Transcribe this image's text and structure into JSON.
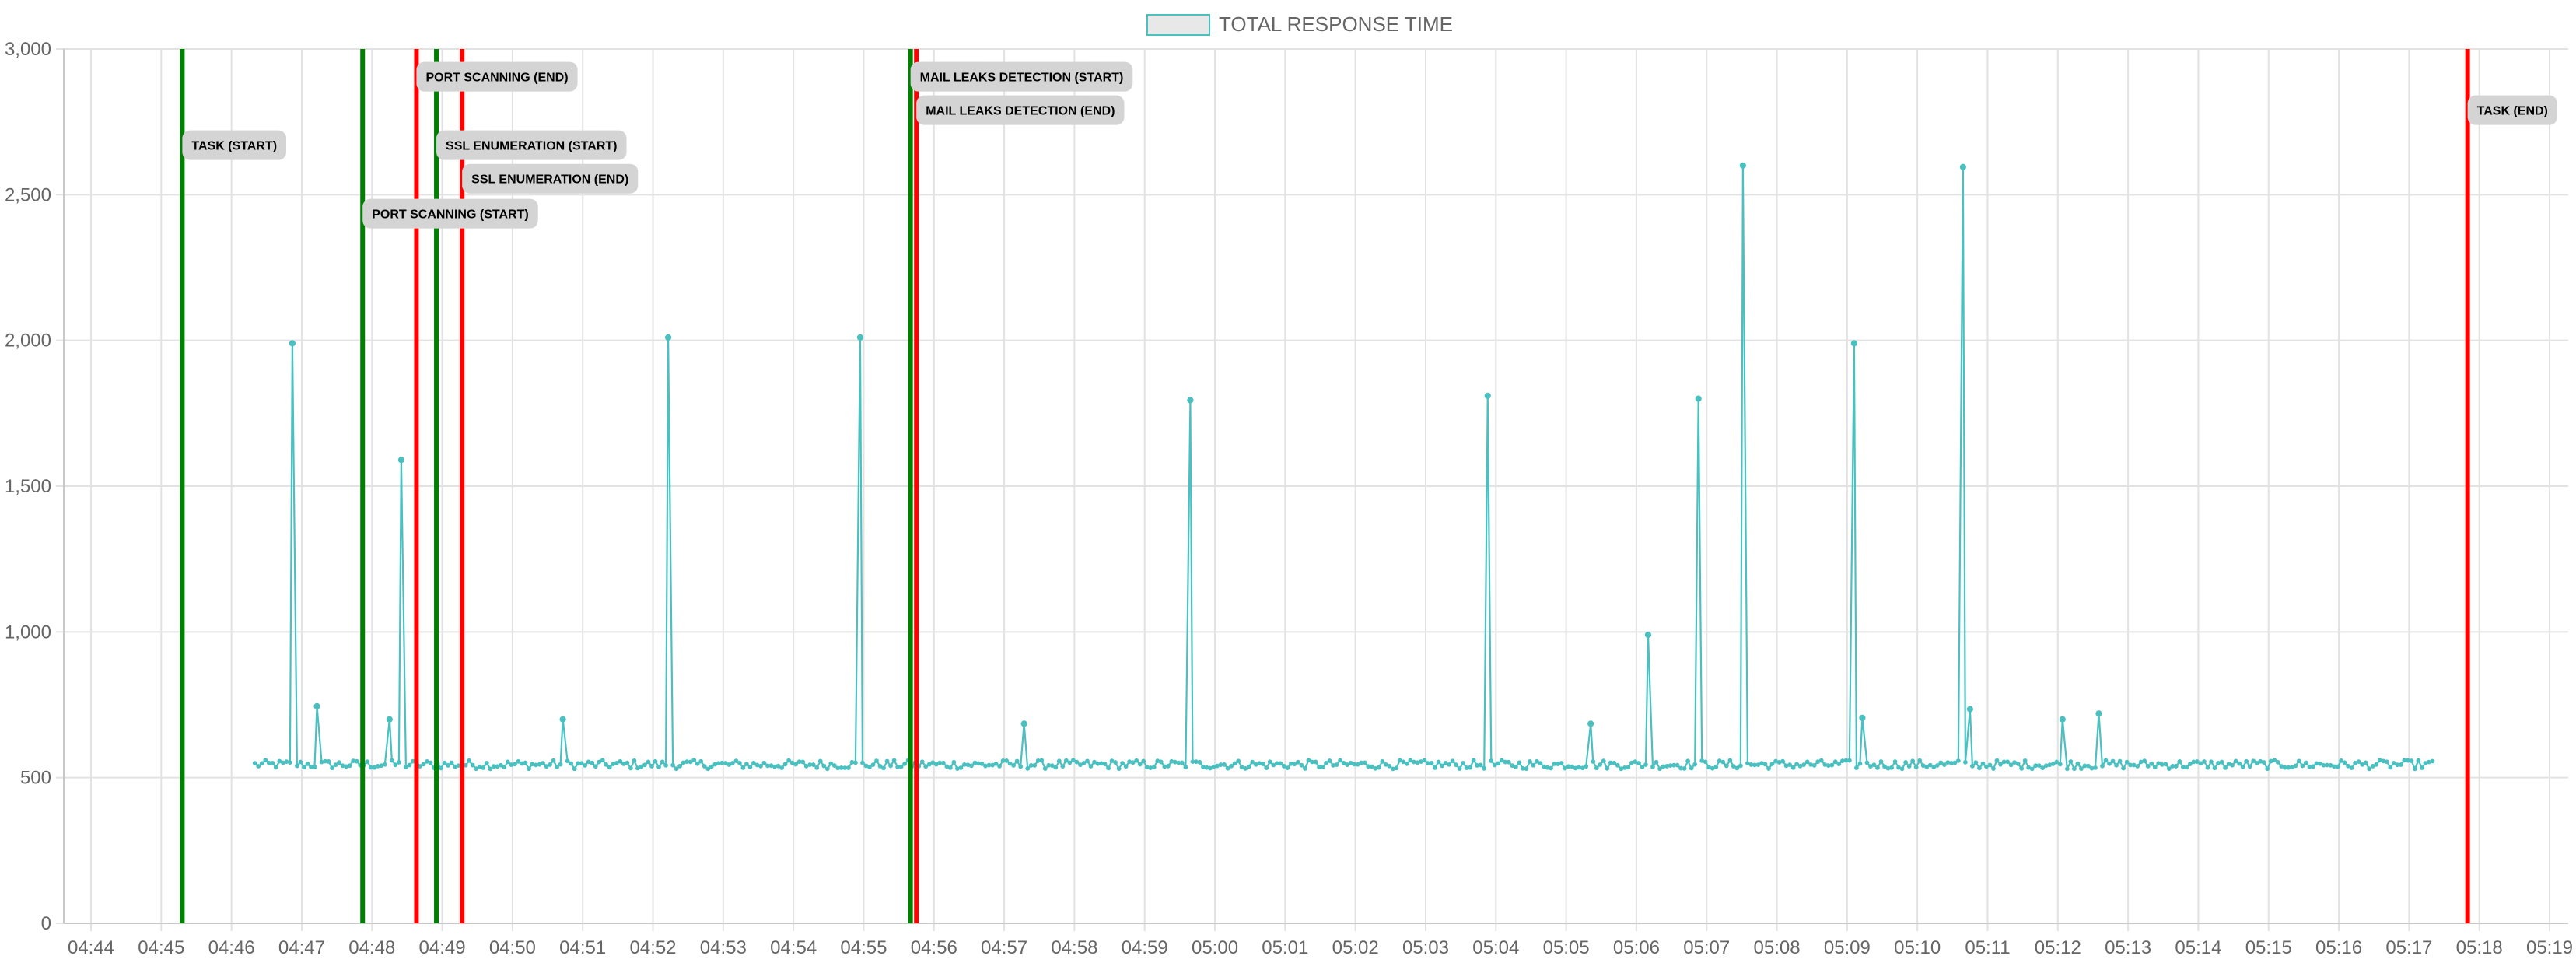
{
  "chart_data": {
    "type": "line",
    "title": "",
    "xlabel": "",
    "ylabel": "",
    "ylim": [
      0,
      3000
    ],
    "y_ticks": [
      "0",
      "500",
      "1,000",
      "1,500",
      "2,000",
      "2,500",
      "3,000"
    ],
    "y_tick_values": [
      0,
      500,
      1000,
      1500,
      2000,
      2500,
      3000
    ],
    "x_ticks": [
      "04:44",
      "04:45",
      "04:46",
      "04:47",
      "04:48",
      "04:49",
      "04:50",
      "04:51",
      "04:52",
      "04:53",
      "04:54",
      "04:55",
      "04:56",
      "04:57",
      "04:58",
      "04:59",
      "05:00",
      "05:01",
      "05:02",
      "05:03",
      "05:04",
      "05:05",
      "05:06",
      "05:07",
      "05:08",
      "05:09",
      "05:10",
      "05:11",
      "05:12",
      "05:13",
      "05:14",
      "05:15",
      "05:16",
      "05:17",
      "05:18",
      "05:19"
    ],
    "xlim": [
      "04:44",
      "05:19"
    ],
    "grid": true,
    "legend": {
      "position": "top",
      "entries": [
        "TOTAL RESPONSE TIME"
      ]
    },
    "series": [
      {
        "name": "TOTAL RESPONSE TIME",
        "color": "#4bc0c0",
        "baseline": 545,
        "x_start": "04:46:20",
        "x_end": "05:17:20",
        "spikes": [
          {
            "x": "04:46:52",
            "y": 1990
          },
          {
            "x": "04:47:13",
            "y": 745
          },
          {
            "x": "04:48:15",
            "y": 700
          },
          {
            "x": "04:48:25",
            "y": 1590
          },
          {
            "x": "04:50:43",
            "y": 700
          },
          {
            "x": "04:52:13",
            "y": 2010
          },
          {
            "x": "04:54:57",
            "y": 2010
          },
          {
            "x": "04:57:17",
            "y": 685
          },
          {
            "x": "04:59:39",
            "y": 1795
          },
          {
            "x": "05:03:53",
            "y": 1810
          },
          {
            "x": "05:05:21",
            "y": 685
          },
          {
            "x": "05:06:10",
            "y": 990
          },
          {
            "x": "05:06:53",
            "y": 1800
          },
          {
            "x": "05:07:31",
            "y": 2600
          },
          {
            "x": "05:09:06",
            "y": 1990
          },
          {
            "x": "05:09:13",
            "y": 705
          },
          {
            "x": "05:10:39",
            "y": 2595
          },
          {
            "x": "05:10:45",
            "y": 735
          },
          {
            "x": "05:12:04",
            "y": 700
          },
          {
            "x": "05:12:35",
            "y": 720
          }
        ]
      }
    ],
    "annotations": [
      {
        "label": "TASK (START)",
        "x": "04:45:18",
        "color": "#008000",
        "label_y": 2670
      },
      {
        "label": "PORT SCANNING (START)",
        "x": "04:47:52",
        "color": "#008000",
        "label_y": 2435
      },
      {
        "label": "PORT SCANNING (END)",
        "x": "04:48:38",
        "color": "#ff0000",
        "label_y": 2905
      },
      {
        "label": "SSL ENUMERATION (START)",
        "x": "04:48:55",
        "color": "#008000",
        "label_y": 2670
      },
      {
        "label": "SSL ENUMERATION (END)",
        "x": "04:49:17",
        "color": "#ff0000",
        "label_y": 2555
      },
      {
        "label": "MAIL LEAKS DETECTION (START)",
        "x": "04:55:40",
        "color": "#008000",
        "label_y": 2905
      },
      {
        "label": "MAIL LEAKS DETECTION (END)",
        "x": "04:55:45",
        "color": "#ff0000",
        "label_y": 2790
      },
      {
        "label": "TASK (END)",
        "x": "05:17:50",
        "color": "#ff0000",
        "label_y": 2790
      }
    ]
  }
}
